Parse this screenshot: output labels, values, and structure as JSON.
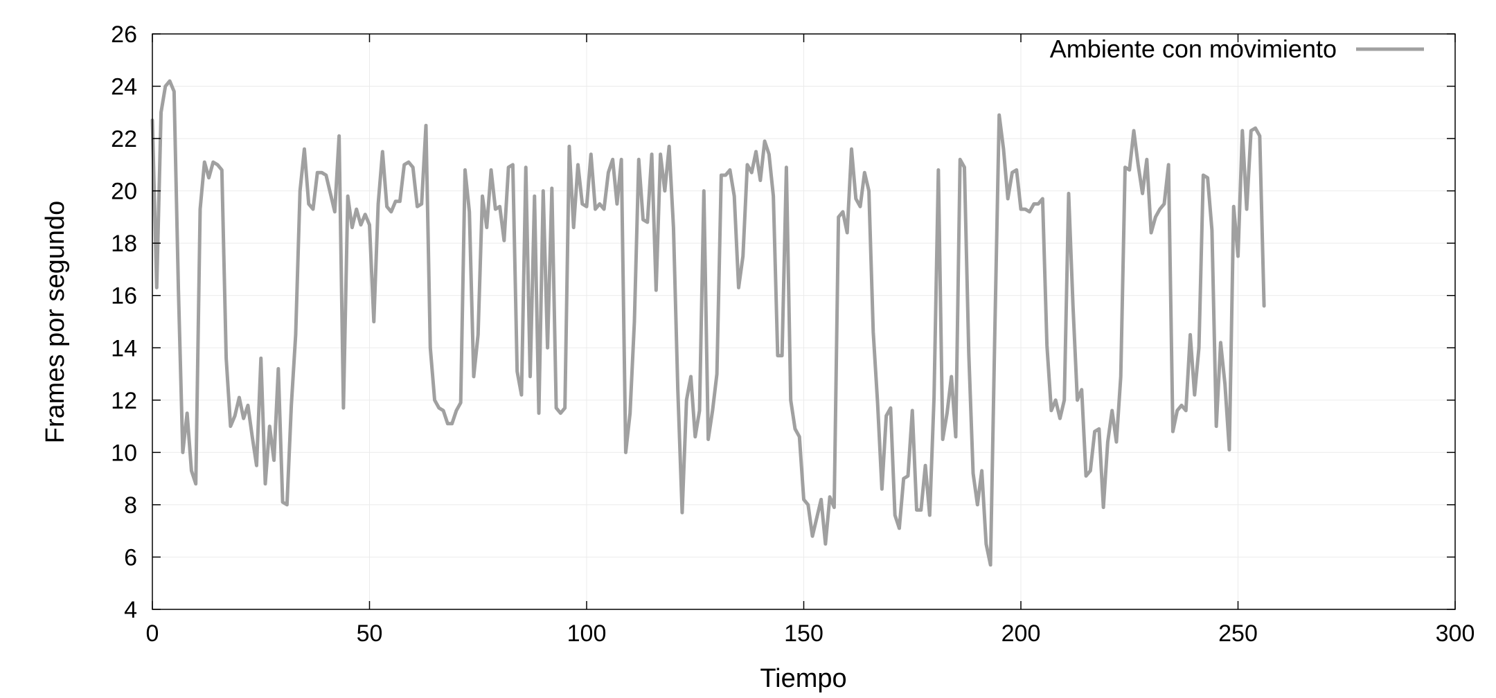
{
  "chart_data": {
    "type": "line",
    "title": "",
    "xlabel": "Tiempo",
    "ylabel": "Frames por segundo",
    "xlim": [
      0,
      300
    ],
    "ylim": [
      4,
      26
    ],
    "xticks": [
      0,
      50,
      100,
      150,
      200,
      250,
      300
    ],
    "yticks": [
      4,
      6,
      8,
      10,
      12,
      14,
      16,
      18,
      20,
      22,
      24,
      26
    ],
    "grid": true,
    "legend_position": "top-right",
    "series": [
      {
        "name": "Ambiente con movimiento",
        "color": "#a0a0a0",
        "x": [
          0,
          1,
          2,
          3,
          4,
          5,
          6,
          7,
          8,
          9,
          10,
          11,
          12,
          13,
          14,
          15,
          16,
          17,
          18,
          19,
          20,
          21,
          22,
          23,
          24,
          25,
          26,
          27,
          28,
          29,
          30,
          31,
          32,
          33,
          34,
          35,
          36,
          37,
          38,
          39,
          40,
          41,
          42,
          43,
          44,
          45,
          46,
          47,
          48,
          49,
          50,
          51,
          52,
          53,
          54,
          55,
          56,
          57,
          58,
          59,
          60,
          61,
          62,
          63,
          64,
          65,
          66,
          67,
          68,
          69,
          70,
          71,
          72,
          73,
          74,
          75,
          76,
          77,
          78,
          79,
          80,
          81,
          82,
          83,
          84,
          85,
          86,
          87,
          88,
          89,
          90,
          91,
          92,
          93,
          94,
          95,
          96,
          97,
          98,
          99,
          100,
          101,
          102,
          103,
          104,
          105,
          106,
          107,
          108,
          109,
          110,
          111,
          112,
          113,
          114,
          115,
          116,
          117,
          118,
          119,
          120,
          121,
          122,
          123,
          124,
          125,
          126,
          127,
          128,
          129,
          130,
          131,
          132,
          133,
          134,
          135,
          136,
          137,
          138,
          139,
          140,
          141,
          142,
          143,
          144,
          145,
          146,
          147,
          148,
          149,
          150,
          151,
          152,
          153,
          154,
          155,
          156,
          157,
          158,
          159,
          160,
          161,
          162,
          163,
          164,
          165,
          166,
          167,
          168,
          169,
          170,
          171,
          172,
          173,
          174,
          175,
          176,
          177,
          178,
          179,
          180,
          181,
          182,
          183,
          184,
          185,
          186,
          187,
          188,
          189,
          190,
          191,
          192,
          193,
          194,
          195,
          196,
          197,
          198,
          199,
          200,
          201,
          202,
          203,
          204,
          205,
          206,
          207,
          208,
          209,
          210,
          211,
          212,
          213,
          214,
          215,
          216,
          217,
          218,
          219,
          220,
          221,
          222,
          223,
          224,
          225,
          226,
          227,
          228,
          229,
          230,
          231,
          232,
          233,
          234,
          235,
          236,
          237,
          238,
          239,
          240,
          241,
          242,
          243,
          244,
          245,
          246,
          247,
          248,
          249,
          250,
          251,
          252,
          253,
          254,
          255,
          256
        ],
        "values": [
          22.7,
          16.3,
          23.0,
          24.0,
          24.2,
          23.8,
          16.2,
          10.0,
          11.5,
          9.3,
          8.8,
          19.3,
          21.1,
          20.5,
          21.1,
          21.0,
          20.8,
          13.6,
          11.0,
          11.4,
          12.1,
          11.3,
          11.8,
          10.6,
          9.5,
          13.6,
          8.8,
          11.0,
          9.7,
          13.2,
          8.1,
          8.0,
          11.8,
          14.5,
          20.0,
          21.6,
          19.5,
          19.3,
          20.7,
          20.7,
          20.6,
          19.9,
          19.2,
          22.1,
          11.7,
          19.8,
          18.6,
          19.3,
          18.7,
          19.1,
          18.7,
          15.0,
          19.5,
          21.5,
          19.4,
          19.2,
          19.6,
          19.6,
          21.0,
          21.1,
          20.9,
          19.4,
          19.5,
          22.5,
          14.0,
          12.0,
          11.7,
          11.6,
          11.1,
          11.1,
          11.6,
          11.9,
          20.8,
          19.2,
          12.9,
          14.5,
          19.8,
          18.6,
          20.8,
          19.3,
          19.4,
          18.1,
          20.9,
          21.0,
          13.1,
          12.2,
          20.9,
          12.9,
          19.8,
          11.5,
          20.0,
          14.0,
          20.1,
          11.7,
          11.5,
          11.7,
          21.7,
          18.6,
          21.0,
          19.5,
          19.4,
          21.4,
          19.3,
          19.5,
          19.3,
          20.7,
          21.2,
          19.5,
          21.2,
          10.0,
          11.5,
          15.0,
          21.2,
          18.9,
          18.8,
          21.4,
          16.2,
          21.4,
          20.0,
          21.7,
          18.6,
          12.4,
          7.7,
          12.0,
          12.9,
          10.6,
          11.6,
          20.0,
          10.5,
          11.6,
          13.0,
          20.6,
          20.6,
          20.8,
          19.8,
          16.3,
          17.5,
          21.0,
          20.7,
          21.5,
          20.4,
          21.9,
          21.4,
          19.8,
          13.7,
          13.7,
          20.9,
          12.0,
          10.9,
          10.6,
          8.2,
          8.0,
          6.8,
          7.5,
          8.2,
          6.5,
          8.3,
          7.9,
          19.0,
          19.2,
          18.4,
          21.6,
          19.7,
          19.4,
          20.7,
          20.0,
          14.6,
          11.9,
          8.6,
          11.4,
          11.7,
          7.6,
          7.1,
          9.0,
          9.1,
          11.6,
          7.8,
          7.8,
          9.5,
          7.6,
          12.1,
          20.8,
          10.5,
          11.5,
          12.9,
          10.6,
          21.2,
          20.9,
          13.8,
          9.2,
          8.0,
          9.3,
          6.5,
          5.7,
          14.6,
          22.9,
          21.6,
          19.7,
          20.7,
          20.8,
          19.3,
          19.3,
          19.2,
          19.5,
          19.5,
          19.7,
          14.1,
          11.6,
          12.0,
          11.3,
          12.0,
          19.9,
          15.6,
          12.0,
          12.4,
          9.1,
          9.3,
          10.8,
          10.9,
          7.9,
          10.4,
          11.6,
          10.4,
          12.9,
          20.9,
          20.8,
          22.3,
          21.0,
          19.9,
          21.2,
          18.4,
          19.0,
          19.3,
          19.5,
          21.0,
          10.8,
          11.6,
          11.8,
          11.6,
          14.5,
          12.2,
          14.0,
          20.6,
          20.5,
          18.5,
          11.0,
          14.2,
          12.6,
          10.1,
          19.4,
          17.5,
          22.3,
          19.3,
          22.3,
          22.4,
          22.1,
          15.6
        ]
      }
    ]
  }
}
